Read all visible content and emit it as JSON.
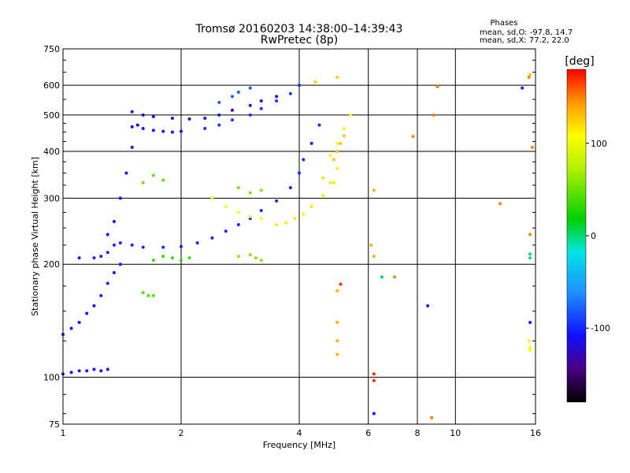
{
  "chart_data": {
    "type": "scatter",
    "title": "Tromsø 20160203 14:38:00–14:39:43",
    "subtitle": "RwPretec (8p)",
    "xlabel": "Frequency [MHz]",
    "ylabel": "Stationary phase Virtual Height [km]",
    "x_scale": "log",
    "y_scale": "log",
    "xlim": [
      1,
      16
    ],
    "ylim": [
      75,
      750
    ],
    "x_ticks": [
      1,
      2,
      4,
      6,
      8,
      10,
      16
    ],
    "x_tick_labels": [
      "1",
      "2",
      "4",
      "6",
      "8",
      "10",
      "16"
    ],
    "y_ticks": [
      75,
      100,
      200,
      300,
      400,
      500,
      600,
      750
    ],
    "y_tick_labels": [
      "75",
      "100",
      "200",
      "300",
      "400",
      "500",
      "600",
      "750"
    ],
    "grid": true,
    "phases_box": {
      "title": "Phases",
      "line1": "mean, sd,O: -97.8, 14.7",
      "line2": "mean, sd,X:  77.2, 22.0"
    },
    "colorbar": {
      "unit_label": "[deg]",
      "range": [
        -180,
        180
      ],
      "ticks": [
        100,
        0,
        -100
      ],
      "tick_labels": [
        "100",
        "0",
        "-100"
      ]
    },
    "traces": [
      {
        "points": [
          [
            1.0,
            102
          ],
          [
            1.05,
            103
          ],
          [
            1.1,
            104
          ],
          [
            1.15,
            104
          ],
          [
            1.2,
            105
          ],
          [
            1.25,
            104
          ],
          [
            1.3,
            105
          ]
        ],
        "phase": -110
      },
      {
        "points": [
          [
            1.0,
            130
          ],
          [
            1.05,
            135
          ],
          [
            1.1,
            140
          ],
          [
            1.15,
            148
          ],
          [
            1.2,
            155
          ],
          [
            1.25,
            165
          ],
          [
            1.3,
            178
          ],
          [
            1.35,
            190
          ],
          [
            1.4,
            200
          ]
        ],
        "phase": -105
      },
      {
        "points": [
          [
            1.1,
            208
          ],
          [
            1.2,
            208
          ],
          [
            1.25,
            210
          ],
          [
            1.3,
            215
          ],
          [
            1.35,
            225
          ],
          [
            1.4,
            228
          ],
          [
            1.5,
            225
          ],
          [
            1.6,
            222
          ],
          [
            1.8,
            222
          ],
          [
            2.0,
            223
          ],
          [
            2.2,
            228
          ],
          [
            2.4,
            235
          ],
          [
            2.6,
            245
          ],
          [
            2.8,
            255
          ],
          [
            3.0,
            265
          ],
          [
            3.2,
            278
          ],
          [
            3.5,
            295
          ],
          [
            3.8,
            320
          ],
          [
            4.0,
            350
          ],
          [
            4.1,
            380
          ],
          [
            4.3,
            420
          ],
          [
            4.5,
            470
          ]
        ],
        "phase": -100
      },
      {
        "points": [
          [
            1.3,
            240
          ],
          [
            1.35,
            260
          ],
          [
            1.4,
            300
          ],
          [
            1.45,
            350
          ],
          [
            1.5,
            410
          ],
          [
            1.55,
            470
          ]
        ],
        "phase": -108
      },
      {
        "points": [
          [
            1.5,
            465
          ],
          [
            1.6,
            460
          ],
          [
            1.7,
            455
          ],
          [
            1.8,
            452
          ],
          [
            1.9,
            450
          ],
          [
            2.0,
            452
          ]
        ],
        "phase": -112
      },
      {
        "points": [
          [
            2.3,
            460
          ],
          [
            2.5,
            470
          ],
          [
            2.7,
            485
          ],
          [
            3.0,
            500
          ],
          [
            3.2,
            520
          ],
          [
            3.5,
            545
          ],
          [
            3.8,
            570
          ],
          [
            4.0,
            600
          ]
        ],
        "phase": -95
      },
      {
        "points": [
          [
            1.5,
            510
          ],
          [
            1.6,
            500
          ],
          [
            1.7,
            495
          ],
          [
            1.9,
            490
          ],
          [
            2.1,
            488
          ],
          [
            2.3,
            490
          ],
          [
            2.5,
            500
          ],
          [
            2.7,
            515
          ],
          [
            3.0,
            530
          ],
          [
            3.2,
            545
          ],
          [
            3.5,
            560
          ]
        ],
        "phase": -118
      },
      {
        "points": [
          [
            2.5,
            540
          ],
          [
            2.7,
            560
          ],
          [
            2.8,
            575
          ],
          [
            3.0,
            590
          ]
        ],
        "phase": -80
      },
      {
        "points": [
          [
            2.4,
            300
          ],
          [
            2.6,
            285
          ],
          [
            2.8,
            275
          ],
          [
            3.0,
            268
          ],
          [
            3.2,
            265
          ]
        ],
        "phase": 105
      },
      {
        "points": [
          [
            3.5,
            255
          ],
          [
            3.7,
            258
          ],
          [
            3.9,
            265
          ],
          [
            4.1,
            272
          ],
          [
            4.3,
            285
          ],
          [
            4.6,
            305
          ],
          [
            4.8,
            330
          ],
          [
            5.0,
            360
          ]
        ],
        "phase": 115
      },
      {
        "points": [
          [
            4.8,
            390
          ],
          [
            5.0,
            420
          ],
          [
            5.2,
            460
          ],
          [
            5.4,
            500
          ]
        ],
        "phase": 110
      },
      {
        "points": [
          [
            1.7,
            205
          ],
          [
            1.8,
            210
          ],
          [
            1.9,
            208
          ],
          [
            2.0,
            205
          ],
          [
            2.1,
            208
          ]
        ],
        "phase": 35
      },
      {
        "points": [
          [
            2.8,
            210
          ],
          [
            3.0,
            212
          ],
          [
            3.1,
            208
          ],
          [
            3.2,
            205
          ]
        ],
        "phase": 60
      },
      {
        "points": [
          [
            1.6,
            168
          ],
          [
            1.65,
            165
          ],
          [
            1.7,
            165
          ]
        ],
        "phase": 45
      },
      {
        "points": [
          [
            1.6,
            330
          ],
          [
            1.7,
            345
          ],
          [
            1.8,
            335
          ]
        ],
        "phase": 50
      },
      {
        "points": [
          [
            2.8,
            320
          ],
          [
            3.0,
            310
          ],
          [
            3.2,
            315
          ]
        ],
        "phase": 55
      },
      {
        "points": [
          [
            4.6,
            340
          ],
          [
            4.9,
            330
          ]
        ],
        "phase": 90
      },
      {
        "points": [
          [
            4.4,
            612
          ],
          [
            5.0,
            630
          ],
          [
            15.5,
            640
          ]
        ],
        "phase": 125
      },
      {
        "points": [
          [
            5.2,
            440
          ],
          [
            5.1,
            420
          ],
          [
            5.0,
            400
          ],
          [
            4.9,
            380
          ]
        ],
        "phase": 130
      },
      {
        "points": [
          [
            6.2,
            315
          ],
          [
            6.1,
            225
          ],
          [
            6.2,
            210
          ],
          [
            5.0,
            170
          ],
          [
            5.0,
            140
          ],
          [
            5.0,
            125
          ],
          [
            5.0,
            115
          ]
        ],
        "phase": 135
      },
      {
        "points": [
          [
            7.0,
            185
          ],
          [
            8.7,
            78
          ],
          [
            9.0,
            595
          ],
          [
            8.8,
            500
          ],
          [
            7.8,
            438
          ],
          [
            13.0,
            290
          ],
          [
            15.5,
            240
          ],
          [
            15.4,
            630
          ],
          [
            15.7,
            410
          ]
        ],
        "phase": 150
      },
      {
        "points": [
          [
            6.2,
            102
          ],
          [
            6.2,
            98
          ],
          [
            5.1,
            177
          ]
        ],
        "phase": 170
      },
      {
        "points": [
          [
            6.2,
            80
          ],
          [
            8.5,
            155
          ],
          [
            15.5,
            140
          ],
          [
            14.8,
            590
          ]
        ],
        "phase": -105
      },
      {
        "points": [
          [
            15.5,
            208
          ],
          [
            15.5,
            213
          ],
          [
            6.5,
            185
          ]
        ],
        "phase": 0
      },
      {
        "points": [
          [
            15.5,
            120
          ],
          [
            15.5,
            118
          ],
          [
            15.4,
            125
          ]
        ],
        "phase": 110
      }
    ]
  }
}
